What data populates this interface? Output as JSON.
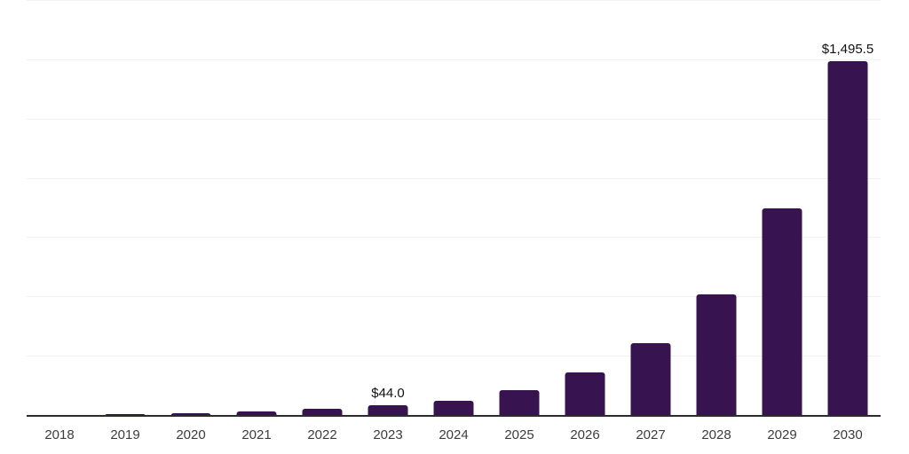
{
  "chart_data": {
    "type": "bar",
    "title": "",
    "xlabel": "",
    "ylabel": "",
    "categories": [
      "2018",
      "2019",
      "2020",
      "2021",
      "2022",
      "2023",
      "2024",
      "2025",
      "2026",
      "2027",
      "2028",
      "2029",
      "2030"
    ],
    "values": [
      4,
      7.5,
      12,
      20,
      30,
      44.0,
      65,
      110,
      185,
      308,
      514,
      875,
      1495.5
    ],
    "data_labels": [
      "",
      "",
      "",
      "",
      "",
      "$44.0",
      "",
      "",
      "",
      "",
      "",
      "",
      "$1,495.5"
    ],
    "ylim": [
      0,
      1750
    ],
    "gridline_step": 250,
    "grid": true,
    "legend": false,
    "colors": {
      "bar": "#371450",
      "gridline": "#f2f2f2",
      "axis_line": "#2b2b2b",
      "tick_label": "#3d3d3d",
      "data_label": "#111111",
      "background": "#ffffff"
    }
  }
}
